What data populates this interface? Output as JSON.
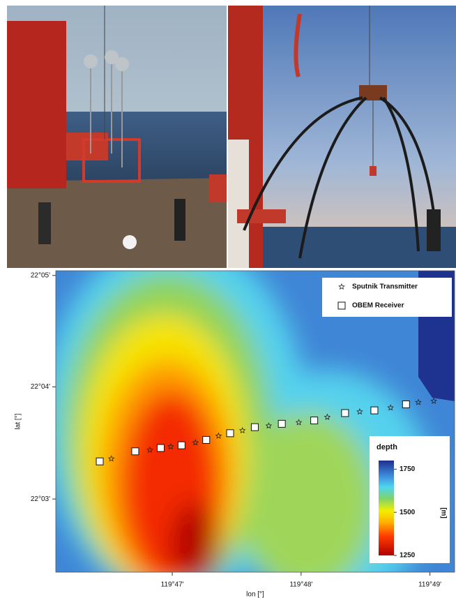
{
  "chart_data": {
    "type": "scatter",
    "xlabel": "lon [°]",
    "ylabel": "lat [°]",
    "xlim": [
      119.7682,
      119.8199
    ],
    "ylim": [
      22.0391,
      22.084
    ],
    "xticks": [
      {
        "value": 119.7833,
        "label": "119°47'"
      },
      {
        "value": 119.8,
        "label": "119°48'"
      },
      {
        "value": 119.8167,
        "label": "119°49'"
      }
    ],
    "yticks": [
      {
        "value": 22.05,
        "label": "22°03'"
      },
      {
        "value": 22.0667,
        "label": "22°04'"
      },
      {
        "value": 22.0833,
        "label": "22°05'"
      }
    ],
    "legend": "upper right",
    "series": [
      {
        "name": "Sputnik Transmitter",
        "marker": "star",
        "color": "#222222",
        "x": [
          119.7754,
          119.7804,
          119.7831,
          119.7863,
          119.7893,
          119.7924,
          119.7958,
          119.7997,
          119.8034,
          119.8076,
          119.8116,
          119.8152,
          119.8172
        ],
        "y": [
          22.056,
          22.0573,
          22.0578,
          22.0584,
          22.0594,
          22.0602,
          22.0609,
          22.0614,
          22.0622,
          22.063,
          22.0636,
          22.0644,
          22.0646
        ]
      },
      {
        "name": "OBEM Receiver",
        "marker": "square",
        "color": "#ffffff",
        "x": [
          119.7739,
          119.7785,
          119.7818,
          119.7845,
          119.7877,
          119.7908,
          119.794,
          119.7975,
          119.8017,
          119.8057,
          119.8095,
          119.8136
        ],
        "y": [
          22.0556,
          22.0571,
          22.0576,
          22.058,
          22.0588,
          22.0598,
          22.0607,
          22.0612,
          22.0617,
          22.0628,
          22.0632,
          22.0641
        ]
      }
    ],
    "colorbar": {
      "title": "depth",
      "label": "[m]",
      "lim": [
        1250,
        1800
      ],
      "ticks": [
        1250,
        1500,
        1750
      ]
    }
  }
}
